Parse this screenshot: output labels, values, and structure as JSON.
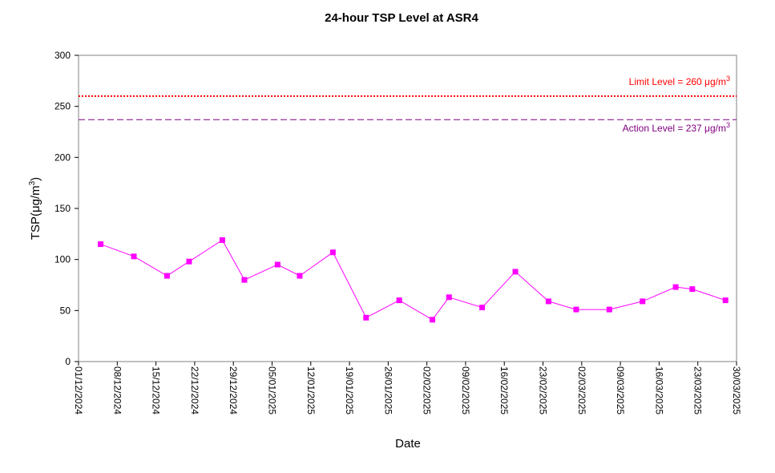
{
  "chart_data": {
    "type": "line",
    "title": "24-hour TSP Level at ASR4",
    "xlabel": "Date",
    "ylabel": "TSP(μg/m3)",
    "ylabel_main": "TSP(",
    "ylabel_unit": "μg/m",
    "ylabel_sup": "3",
    "ylabel_close": ")",
    "ylim": [
      0,
      300
    ],
    "yticks": [
      0,
      50,
      100,
      150,
      200,
      250,
      300
    ],
    "xlim": [
      "2024-12-01",
      "2025-03-30"
    ],
    "xticks": [
      "01/12/2024",
      "08/12/2024",
      "15/12/2024",
      "22/12/2024",
      "29/12/2024",
      "05/01/2025",
      "12/01/2025",
      "19/01/2025",
      "26/01/2025",
      "02/02/2025",
      "09/02/2025",
      "16/02/2025",
      "23/02/2025",
      "02/03/2025",
      "09/03/2025",
      "16/03/2025",
      "23/03/2025",
      "30/03/2025"
    ],
    "grid": false,
    "series": [
      {
        "color": "#ff00ff",
        "x": [
          "2024-12-05",
          "2024-12-11",
          "2024-12-17",
          "2024-12-21",
          "2024-12-27",
          "2024-12-31",
          "2025-01-06",
          "2025-01-10",
          "2025-01-16",
          "2025-01-22",
          "2025-01-28",
          "2025-02-03",
          "2025-02-06",
          "2025-02-12",
          "2025-02-18",
          "2025-02-24",
          "2025-03-01",
          "2025-03-07",
          "2025-03-13",
          "2025-03-19",
          "2025-03-22",
          "2025-03-28"
        ],
        "values": [
          115,
          103,
          84,
          98,
          119,
          80,
          95,
          84,
          107,
          43,
          60,
          41,
          63,
          53,
          88,
          59,
          51,
          51,
          59,
          73,
          71,
          60
        ]
      }
    ],
    "reference_lines": [
      {
        "value": 260,
        "color": "#ff0000",
        "style": "dotted",
        "label": "Limit Level  = 260 μg/m",
        "sup": "3"
      },
      {
        "value": 237,
        "color": "#800080",
        "style": "dashed",
        "label": "Action Level  = 237 μg/m",
        "sup": "3"
      }
    ]
  }
}
